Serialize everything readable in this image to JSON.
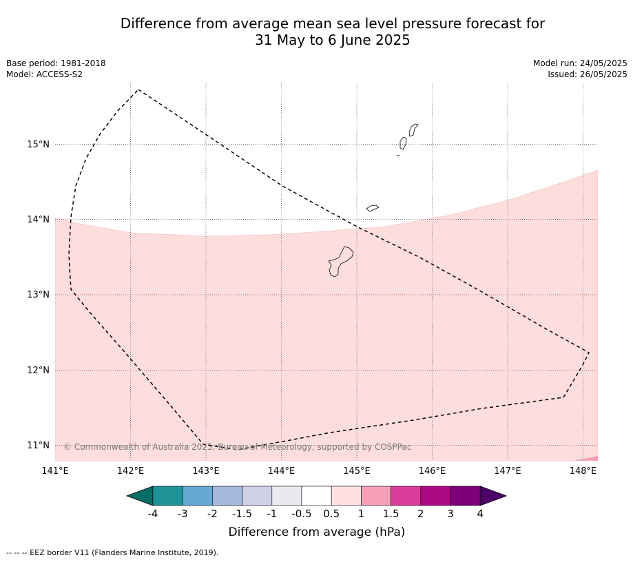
{
  "header": {
    "title_line1": "Difference from average mean sea level pressure forecast for",
    "title_line2": "31 May to 6 June 2025"
  },
  "meta": {
    "base_period": "Base period: 1981-2018",
    "model": "Model: ACCESS-S2",
    "model_run": "Model run: 24/05/2025",
    "issued": "Issued: 26/05/2025"
  },
  "map": {
    "lon_labels": [
      "141°E",
      "142°E",
      "143°E",
      "144°E",
      "145°E",
      "146°E",
      "147°E",
      "148°E"
    ],
    "lat_labels": [
      "15°N",
      "14°N",
      "13°N",
      "12°N",
      "11°N"
    ],
    "copyright": "© Commonwealth of Australia 2025, Bureau of Meteorology, supported by COSPPac",
    "shaded_ranges": [
      {
        "range": "0.5 to 1",
        "color": "#fddedd"
      },
      {
        "range": "1 to 1.5",
        "color": "#f7a0b8"
      }
    ]
  },
  "colorbar": {
    "label": "Difference from average (hPa)",
    "ticks": [
      "-4",
      "-3",
      "-2",
      "-1.5",
      "-1",
      "-0.5",
      "0.5",
      "1",
      "1.5",
      "2",
      "3",
      "4"
    ],
    "colors": [
      "#046e66",
      "#1e9499",
      "#66aad4",
      "#a6b8dc",
      "#cfcfe6",
      "#ebe9ef",
      "#ffffff",
      "#fde0df",
      "#f7a0b8",
      "#db3d9d",
      "#ad0884",
      "#7d0078",
      "#4a0068"
    ]
  },
  "footnote": "--  --  -- EEZ border V11 (Flanders Marine Institute, 2019)."
}
